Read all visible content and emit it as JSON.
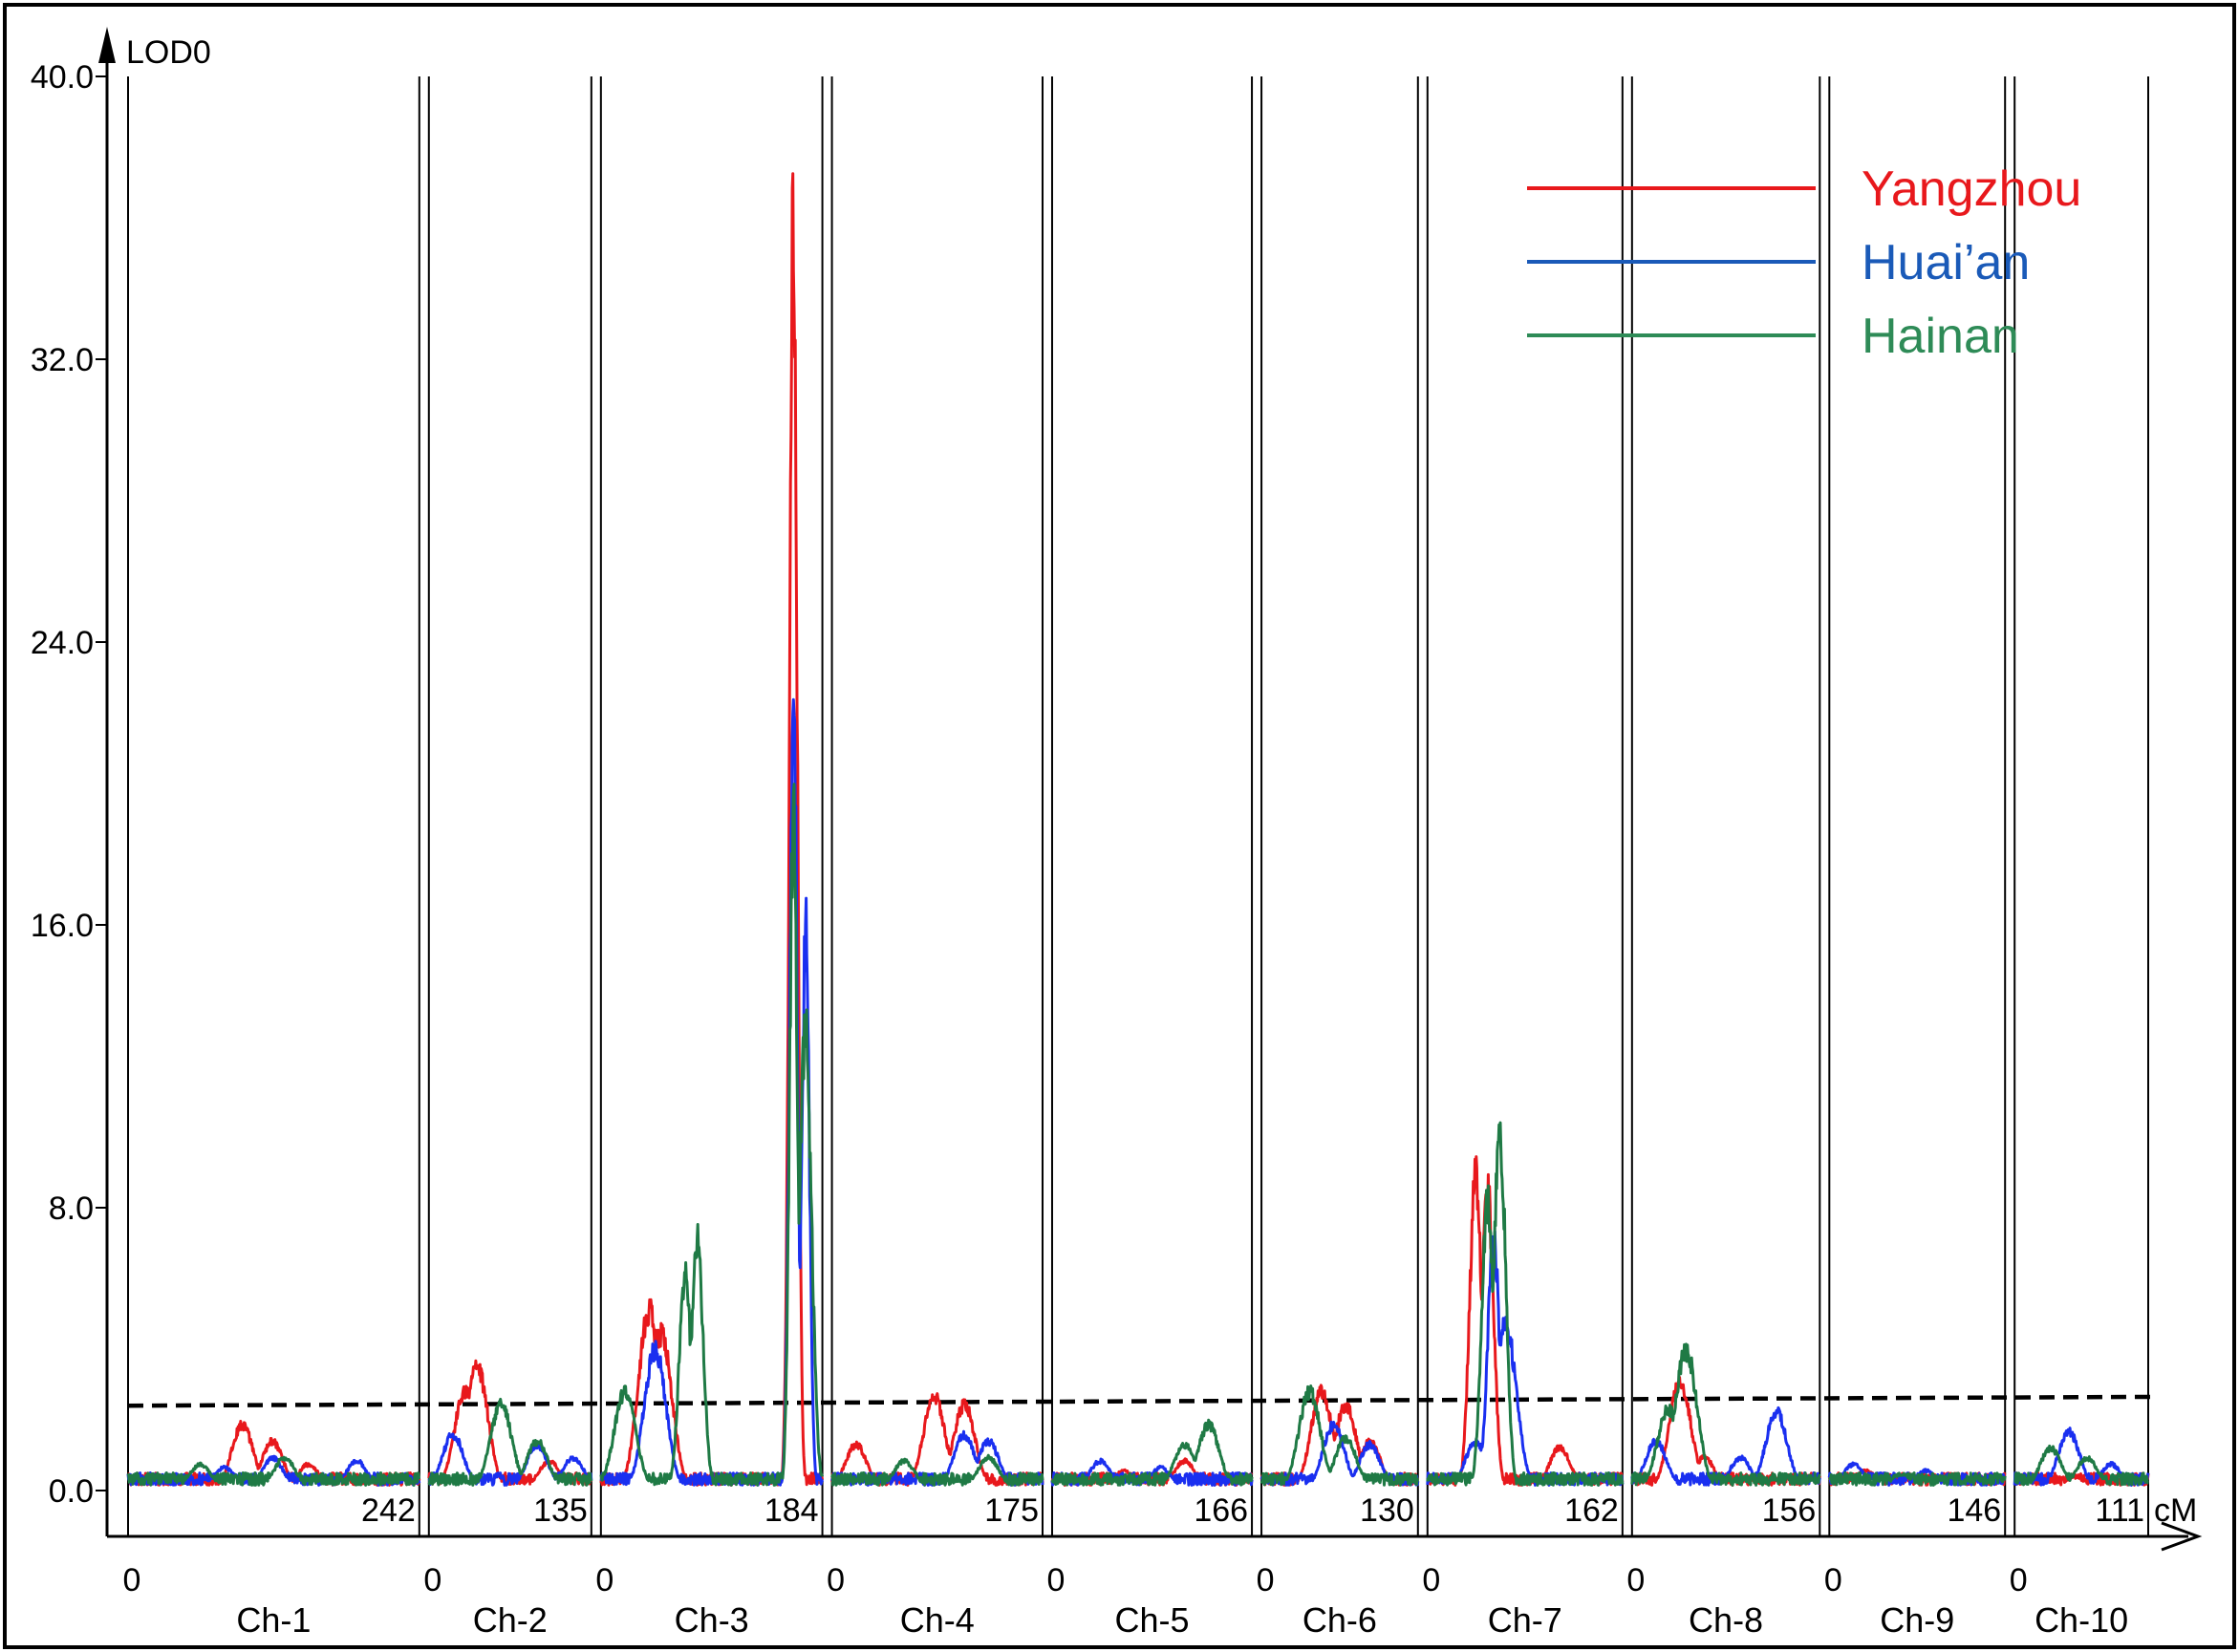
{
  "chart_data": {
    "type": "line",
    "y_axis_label": "LOD0",
    "x_axis_unit": "cM",
    "ylim": [
      0,
      40
    ],
    "y_ticks": [
      0,
      8,
      16,
      24,
      32,
      40
    ],
    "y_tick_labels": [
      "0.0",
      "8.0",
      "16.0",
      "24.0",
      "32.0",
      "40.0"
    ],
    "threshold_lod": 2.5,
    "legend_placement": "top-right",
    "chromosomes": [
      {
        "name": "Ch-1",
        "start": "0",
        "length_cM": 242,
        "end_label": "242"
      },
      {
        "name": "Ch-2",
        "start": "0",
        "length_cM": 135,
        "end_label": "135"
      },
      {
        "name": "Ch-3",
        "start": "0",
        "length_cM": 184,
        "end_label": "184"
      },
      {
        "name": "Ch-4",
        "start": "0",
        "length_cM": 175,
        "end_label": "175"
      },
      {
        "name": "Ch-5",
        "start": "0",
        "length_cM": 166,
        "end_label": "166"
      },
      {
        "name": "Ch-6",
        "start": "0",
        "length_cM": 130,
        "end_label": "130"
      },
      {
        "name": "Ch-7",
        "start": "0",
        "length_cM": 162,
        "end_label": "162"
      },
      {
        "name": "Ch-8",
        "start": "0",
        "length_cM": 156,
        "end_label": "156"
      },
      {
        "name": "Ch-9",
        "start": "0",
        "length_cM": 146,
        "end_label": "146"
      },
      {
        "name": "Ch-10",
        "start": "0",
        "length_cM": 111,
        "end_label": "111"
      }
    ],
    "series": [
      {
        "name": "Yangzhou",
        "color": "#e8181c",
        "peaks": [
          [
            1,
            95,
            2.0
          ],
          [
            1,
            120,
            1.5
          ],
          [
            1,
            150,
            0.8
          ],
          [
            2,
            40,
            3.8
          ],
          [
            2,
            30,
            3.0
          ],
          [
            2,
            100,
            0.9
          ],
          [
            3,
            40,
            5.5
          ],
          [
            3,
            50,
            4.8
          ],
          [
            3,
            160,
            39.5
          ],
          [
            4,
            85,
            2.9
          ],
          [
            4,
            110,
            2.6
          ],
          [
            4,
            20,
            1.4
          ],
          [
            5,
            60,
            0.6
          ],
          [
            5,
            110,
            0.9
          ],
          [
            6,
            50,
            3.0
          ],
          [
            6,
            70,
            2.6
          ],
          [
            6,
            90,
            1.5
          ],
          [
            7,
            40,
            9.5
          ],
          [
            7,
            50,
            9.0
          ],
          [
            7,
            110,
            1.3
          ],
          [
            8,
            40,
            3.3
          ],
          [
            8,
            60,
            1.0
          ],
          [
            9,
            30,
            0.6
          ],
          [
            9,
            100,
            0.5
          ],
          [
            10,
            50,
            0.4
          ]
        ]
      },
      {
        "name": "Huai'an",
        "color": "#1a2ff0",
        "peaks": [
          [
            1,
            120,
            1.0
          ],
          [
            1,
            80,
            0.7
          ],
          [
            1,
            190,
            0.9
          ],
          [
            2,
            20,
            1.7
          ],
          [
            2,
            90,
            1.4
          ],
          [
            2,
            120,
            1.0
          ],
          [
            3,
            45,
            4.3
          ],
          [
            3,
            160,
            24.8
          ],
          [
            3,
            170,
            17.0
          ],
          [
            4,
            110,
            1.7
          ],
          [
            4,
            130,
            1.5
          ],
          [
            5,
            40,
            0.9
          ],
          [
            5,
            90,
            0.7
          ],
          [
            6,
            60,
            2.0
          ],
          [
            6,
            90,
            1.4
          ],
          [
            7,
            55,
            7.5
          ],
          [
            7,
            65,
            5.0
          ],
          [
            7,
            40,
            1.5
          ],
          [
            8,
            20,
            1.5
          ],
          [
            8,
            120,
            2.4
          ],
          [
            8,
            90,
            1.0
          ],
          [
            9,
            20,
            0.8
          ],
          [
            9,
            80,
            0.6
          ],
          [
            10,
            45,
            1.8
          ],
          [
            10,
            80,
            0.8
          ]
        ]
      },
      {
        "name": "Hainan",
        "color": "#1f7a45",
        "peaks": [
          [
            1,
            60,
            0.8
          ],
          [
            1,
            130,
            1.0
          ],
          [
            2,
            60,
            2.6
          ],
          [
            2,
            90,
            1.5
          ],
          [
            3,
            20,
            3.0
          ],
          [
            3,
            80,
            7.6
          ],
          [
            3,
            70,
            6.6
          ],
          [
            3,
            160,
            20.5
          ],
          [
            3,
            170,
            14.0
          ],
          [
            4,
            60,
            0.9
          ],
          [
            4,
            130,
            1.0
          ],
          [
            5,
            130,
            2.0
          ],
          [
            5,
            110,
            1.4
          ],
          [
            6,
            40,
            3.0
          ],
          [
            6,
            70,
            1.6
          ],
          [
            7,
            60,
            11.0
          ],
          [
            7,
            50,
            8.8
          ],
          [
            8,
            45,
            4.3
          ],
          [
            8,
            30,
            2.5
          ],
          [
            9,
            60,
            0.5
          ],
          [
            10,
            30,
            1.3
          ],
          [
            10,
            60,
            1.0
          ]
        ]
      }
    ],
    "legend": [
      {
        "label": "Yangzhou",
        "color": "#e8181c"
      },
      {
        "label": "Huai’an",
        "color": "#1a5ab8"
      },
      {
        "label": "Hainan",
        "color": "#2e8b57"
      }
    ]
  }
}
